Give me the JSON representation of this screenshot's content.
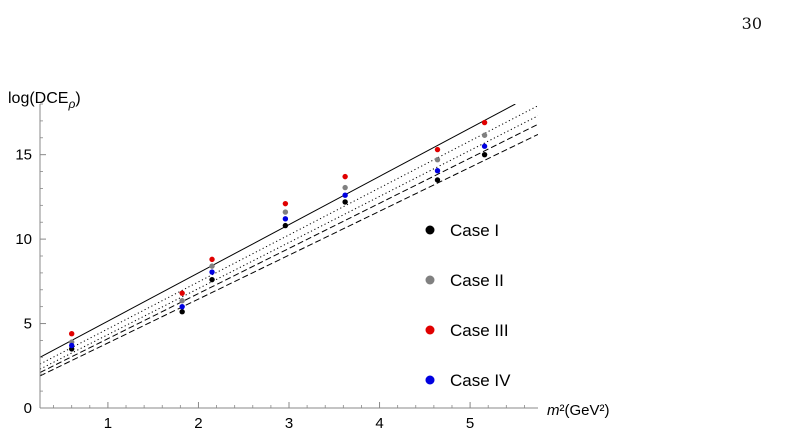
{
  "page": {
    "number": "30"
  },
  "chart_data": {
    "type": "scatter",
    "ylabel": {
      "base": "log(DCE",
      "sub": "ρ",
      "close": ")"
    },
    "xlabel": {
      "m": "m",
      "rest": "²(GeV²)"
    },
    "xlim": [
      0.25,
      5.75
    ],
    "ylim": [
      0,
      18
    ],
    "xticks": [
      1,
      2,
      3,
      4,
      5
    ],
    "yticks": [
      0,
      5,
      10,
      15
    ],
    "minor_x_step": 0.2,
    "minor_y_step": 1,
    "grid": false,
    "legend_position": "right",
    "x": [
      0.6,
      1.82,
      2.15,
      2.96,
      3.62,
      4.64,
      5.16
    ],
    "series": [
      {
        "name": "Case I",
        "color": "#000000",
        "values": [
          3.5,
          5.7,
          7.6,
          10.8,
          12.2,
          13.5,
          15.0
        ]
      },
      {
        "name": "Case II",
        "color": "#808080",
        "values": [
          3.9,
          6.35,
          8.4,
          11.6,
          13.05,
          14.7,
          16.15
        ]
      },
      {
        "name": "Case III",
        "color": "#e00000",
        "values": [
          4.4,
          6.8,
          8.8,
          12.1,
          13.7,
          15.3,
          16.9
        ]
      },
      {
        "name": "Case IV",
        "color": "#0000e0",
        "values": [
          3.7,
          6.0,
          8.05,
          11.2,
          12.6,
          14.05,
          15.5
        ]
      }
    ],
    "fit_lines": [
      {
        "style": "solid",
        "points": [
          [
            0.25,
            3.0
          ],
          [
            5.5,
            18.0
          ]
        ]
      },
      {
        "style": "dotted",
        "points": [
          [
            0.25,
            2.6
          ],
          [
            5.75,
            17.9
          ]
        ]
      },
      {
        "style": "dotted",
        "points": [
          [
            0.25,
            2.3
          ],
          [
            5.75,
            17.3
          ]
        ]
      },
      {
        "style": "dashed",
        "points": [
          [
            0.25,
            2.1
          ],
          [
            5.75,
            16.8
          ]
        ]
      },
      {
        "style": "dashed",
        "points": [
          [
            0.25,
            1.9
          ],
          [
            5.75,
            16.2
          ]
        ]
      }
    ]
  }
}
